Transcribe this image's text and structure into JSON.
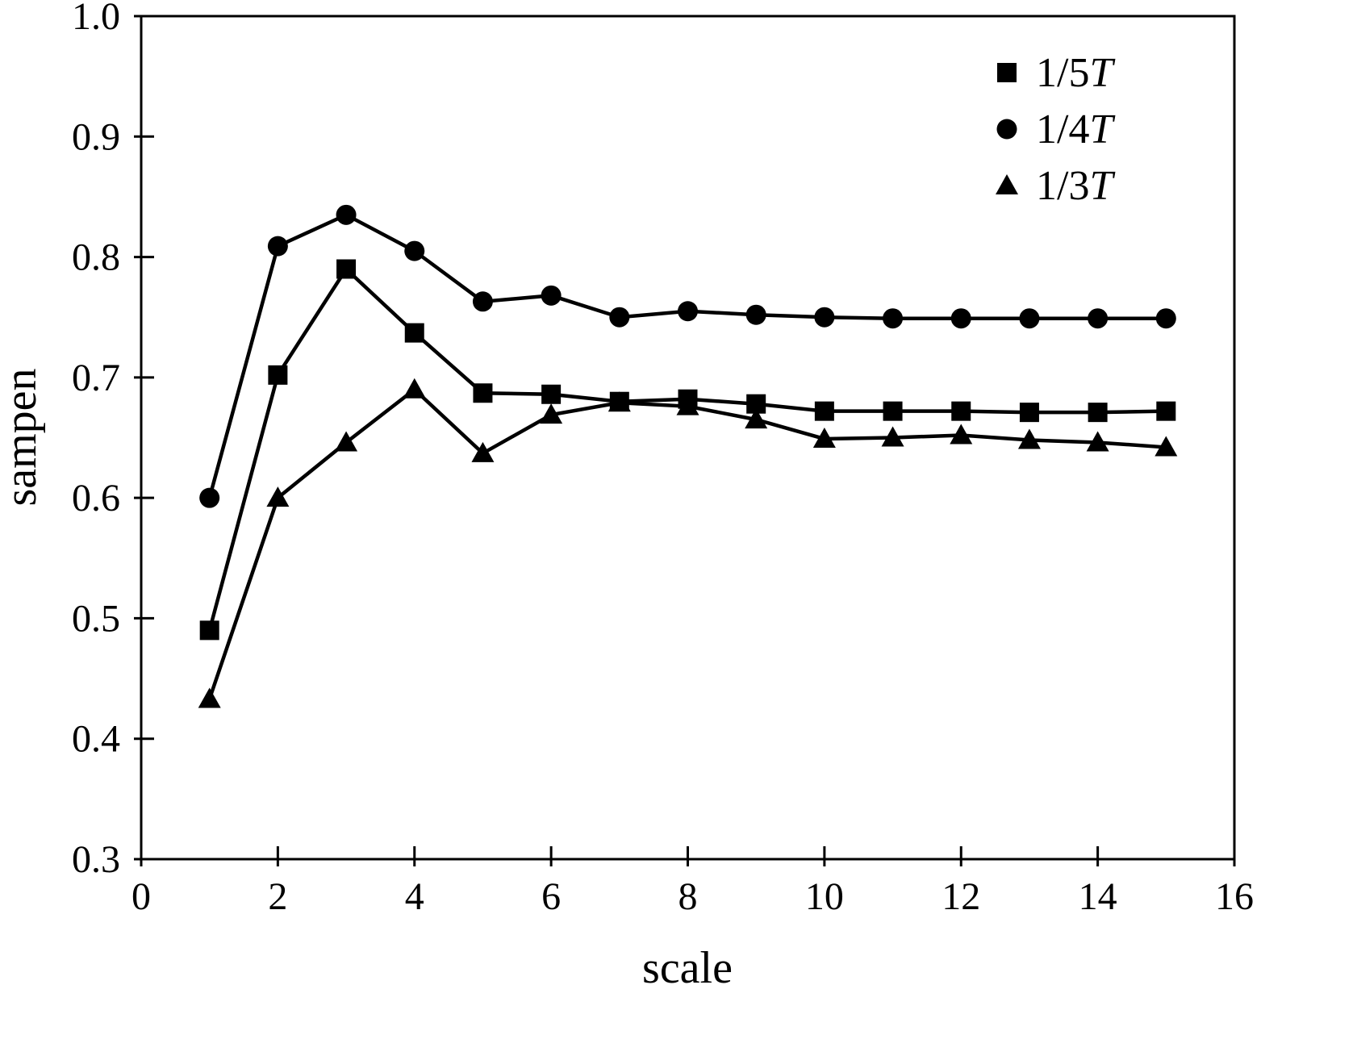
{
  "chart_data": {
    "type": "line",
    "title": "",
    "xlabel": "scale",
    "ylabel": "sampen",
    "xlim": [
      0,
      16
    ],
    "ylim": [
      0.3,
      1.0
    ],
    "x_ticks": [
      0,
      2,
      4,
      6,
      8,
      10,
      12,
      14,
      16
    ],
    "y_ticks": [
      0.3,
      0.4,
      0.5,
      0.6,
      0.7,
      0.8,
      0.9,
      1.0
    ],
    "grid": false,
    "legend_position": "top-right",
    "x": [
      1,
      2,
      3,
      4,
      5,
      6,
      7,
      8,
      9,
      10,
      11,
      12,
      13,
      14,
      15
    ],
    "series": [
      {
        "name": "1/5T",
        "marker": "square",
        "values": [
          0.49,
          0.702,
          0.79,
          0.737,
          0.687,
          0.686,
          0.68,
          0.682,
          0.678,
          0.672,
          0.672,
          0.672,
          0.671,
          0.671,
          0.672
        ]
      },
      {
        "name": "1/4T",
        "marker": "circle",
        "values": [
          0.6,
          0.809,
          0.835,
          0.805,
          0.763,
          0.768,
          0.75,
          0.755,
          0.752,
          0.75,
          0.749,
          0.749,
          0.749,
          0.749,
          0.749
        ]
      },
      {
        "name": "1/3T",
        "marker": "triangle",
        "values": [
          0.433,
          0.6,
          0.646,
          0.69,
          0.637,
          0.669,
          0.679,
          0.676,
          0.665,
          0.649,
          0.65,
          0.652,
          0.648,
          0.646,
          0.642
        ]
      }
    ],
    "colors": {
      "line": "#000000",
      "background": "#ffffff"
    }
  }
}
